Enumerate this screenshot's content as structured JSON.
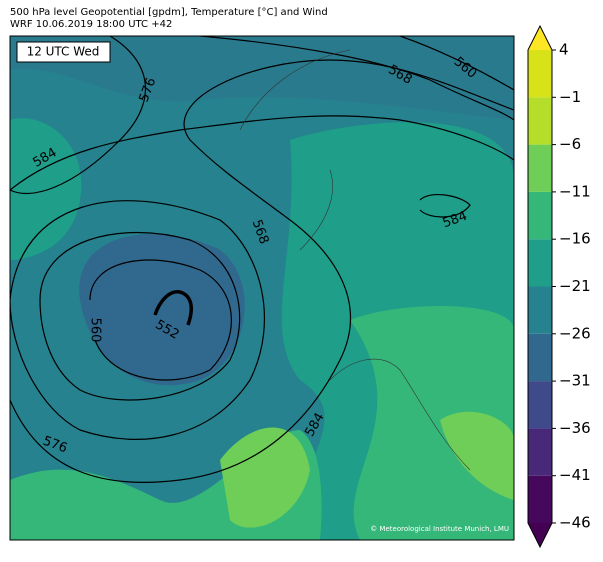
{
  "header": {
    "title": "500 hPa level Geopotential [gpdm], Temperature [°C] and Wind",
    "subtitle": "WRF 10.06.2019 18:00 UTC +42"
  },
  "map": {
    "time_label": "12 UTC Wed",
    "credit": "© Meteorological Institute Munich, LMU",
    "contour_labels": [
      576,
      584,
      568,
      560,
      584,
      568,
      560,
      552,
      576,
      584
    ]
  },
  "colorbar": {
    "range": [
      -46,
      4
    ],
    "ticks": [
      {
        "value": -46,
        "label": "−46"
      },
      {
        "value": -41,
        "label": "−41"
      },
      {
        "value": -36,
        "label": "−36"
      },
      {
        "value": -31,
        "label": "−31"
      },
      {
        "value": -26,
        "label": "−26"
      },
      {
        "value": -21,
        "label": "−21"
      },
      {
        "value": -16,
        "label": "−16"
      },
      {
        "value": -11,
        "label": "−11"
      },
      {
        "value": -6,
        "label": "−6"
      },
      {
        "value": -1,
        "label": "−1"
      },
      4
    ],
    "colors": [
      "#46085c",
      "#482878",
      "#3e4a89",
      "#31688e",
      "#26828e",
      "#1f9e89",
      "#35b779",
      "#6ece58",
      "#b5de2b",
      "#d8e219"
    ],
    "extend_colors": [
      "#440154",
      "#fde725"
    ]
  }
}
